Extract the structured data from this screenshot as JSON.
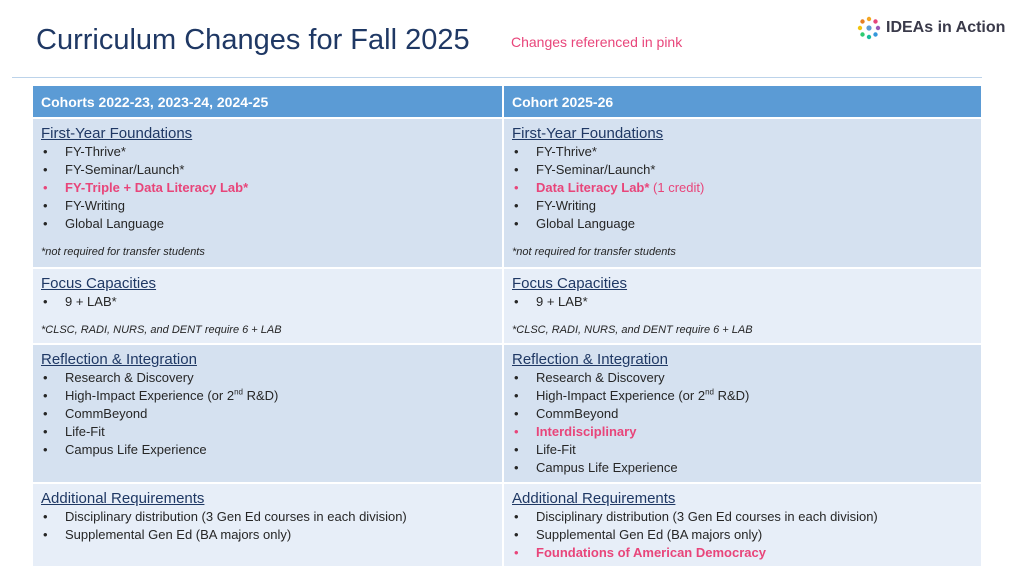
{
  "header": {
    "title": "Curriculum Changes for Fall 2025",
    "note": "Changes referenced in pink",
    "logo_text": "IDEAs in Action"
  },
  "colors": {
    "accent_pink": "#e8457a",
    "header_blue": "#5b9bd5",
    "title_navy": "#1f3864"
  },
  "table": {
    "headers": [
      "Cohorts 2022-23, 2023-24, 2024-25",
      "Cohort 2025-26"
    ],
    "left": {
      "fy_title": "First-Year Foundations",
      "fy_items": [
        "FY-Thrive*",
        "FY-Seminar/Launch*",
        "FY-Triple + Data Literacy Lab*",
        "FY-Writing",
        "Global Language"
      ],
      "fy_note": "*not required for transfer students",
      "fc_title": "Focus Capacities",
      "fc_items": [
        "9 + LAB*"
      ],
      "fc_note": "*CLSC, RADI, NURS, and DENT require 6 + LAB",
      "ri_title": "Reflection & Integration",
      "ri_items": [
        "Research & Discovery",
        "High-Impact Experience (or 2",
        "nd",
        " R&D)",
        "CommBeyond",
        "Life-Fit",
        "Campus Life Experience"
      ],
      "ar_title": "Additional Requirements",
      "ar_items": [
        "Disciplinary distribution (3 Gen Ed courses in each division)",
        "Supplemental Gen Ed (BA majors only)"
      ]
    },
    "right": {
      "fy_title": "First-Year Foundations",
      "fy_items": [
        "FY-Thrive*",
        "FY-Seminar/Launch*",
        "Data Literacy Lab*",
        " (1 credit)",
        "FY-Writing",
        "Global Language"
      ],
      "fy_note": "*not required for transfer students",
      "fc_title": "Focus Capacities",
      "fc_items": [
        "9 + LAB*"
      ],
      "fc_note": "*CLSC, RADI, NURS, and DENT require 6 + LAB",
      "ri_title": "Reflection & Integration",
      "ri_items": [
        "Research & Discovery",
        "High-Impact Experience (or 2",
        "nd",
        " R&D)",
        "CommBeyond",
        "Interdisciplinary",
        "Life-Fit",
        "Campus Life Experience"
      ],
      "ar_title": "Additional Requirements",
      "ar_items": [
        "Disciplinary distribution (3 Gen Ed courses in each division)",
        "Supplemental Gen Ed (BA majors only)",
        "Foundations of American Democracy"
      ]
    }
  }
}
